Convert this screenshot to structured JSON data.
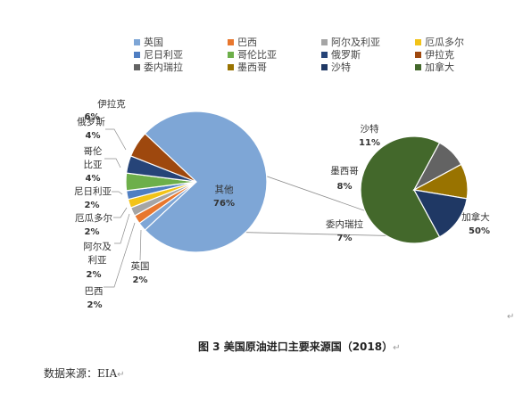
{
  "legend": [
    {
      "label": "英国",
      "color": "#7ea6d6"
    },
    {
      "label": "巴西",
      "color": "#e8772e"
    },
    {
      "label": "阿尔及利亚",
      "color": "#a5a5a5"
    },
    {
      "label": "厄瓜多尔",
      "color": "#f2c318"
    },
    {
      "label": "尼日利亚",
      "color": "#4f7ec2"
    },
    {
      "label": "哥伦比亚",
      "color": "#6daf4a"
    },
    {
      "label": "俄罗斯",
      "color": "#264478"
    },
    {
      "label": "伊拉克",
      "color": "#9e480e"
    },
    {
      "label": "委内瑞拉",
      "color": "#636363"
    },
    {
      "label": "墨西哥",
      "color": "#997300"
    },
    {
      "label": "沙特",
      "color": "#1f3864"
    },
    {
      "label": "加拿大",
      "color": "#43682b"
    }
  ],
  "chart_data": [
    {
      "type": "pie",
      "slices": [
        {
          "label": "其他",
          "value": 76,
          "value_label": "76%",
          "color": "#7ea6d6"
        },
        {
          "label": "英国",
          "value": 2,
          "value_label": "2%",
          "color": "#7ea6d6"
        },
        {
          "label": "巴西",
          "value": 2,
          "value_label": "2%",
          "color": "#e8772e"
        },
        {
          "label": "阿尔及利亚",
          "value": 2,
          "value_label": "2%",
          "color": "#a5a5a5"
        },
        {
          "label": "厄瓜多尔",
          "value": 2,
          "value_label": "2%",
          "color": "#f2c318"
        },
        {
          "label": "尼日利亚",
          "value": 2,
          "value_label": "2%",
          "color": "#4f7ec2"
        },
        {
          "label": "哥伦比亚",
          "value": 4,
          "value_label": "4%",
          "color": "#6daf4a"
        },
        {
          "label": "俄罗斯",
          "value": 4,
          "value_label": "4%",
          "color": "#264478"
        },
        {
          "label": "伊拉克",
          "value": 6,
          "value_label": "6%",
          "color": "#9e480e"
        }
      ]
    },
    {
      "type": "pie",
      "slices": [
        {
          "label": "加拿大",
          "value": 50,
          "value_label": "50%",
          "color": "#43682b"
        },
        {
          "label": "委内瑞拉",
          "value": 7,
          "value_label": "7%",
          "color": "#636363"
        },
        {
          "label": "墨西哥",
          "value": 8,
          "value_label": "8%",
          "color": "#997300"
        },
        {
          "label": "沙特",
          "value": 11,
          "value_label": "11%",
          "color": "#1f3864"
        }
      ]
    }
  ],
  "labels": {
    "main": [
      {
        "name": "伊拉克",
        "pct": "6%"
      },
      {
        "name": "俄罗斯",
        "pct": "4%"
      },
      {
        "name1": "哥伦",
        "name2": "比亚",
        "pct": "4%"
      },
      {
        "name": "尼日利亚",
        "pct": "2%"
      },
      {
        "name": "厄瓜多尔",
        "pct": "2%"
      },
      {
        "name1": "阿尔及",
        "name2": "利亚",
        "pct": "2%"
      },
      {
        "name": "巴西",
        "pct": "2%"
      },
      {
        "name": "英国",
        "pct": "2%"
      },
      {
        "name": "其他",
        "pct": "76%"
      }
    ],
    "sub": [
      {
        "name": "沙特",
        "pct": "11%"
      },
      {
        "name": "墨西哥",
        "pct": "8%"
      },
      {
        "name": "委内瑞拉",
        "pct": "7%"
      },
      {
        "name": "加拿大",
        "pct": "50%"
      }
    ]
  },
  "caption": "图 3 美国原油进口主要来源国（2018）",
  "source": "数据来源：EIA",
  "marks": {
    "para": "↵",
    "caption_mark": "↵",
    "source_mark": "↵"
  }
}
